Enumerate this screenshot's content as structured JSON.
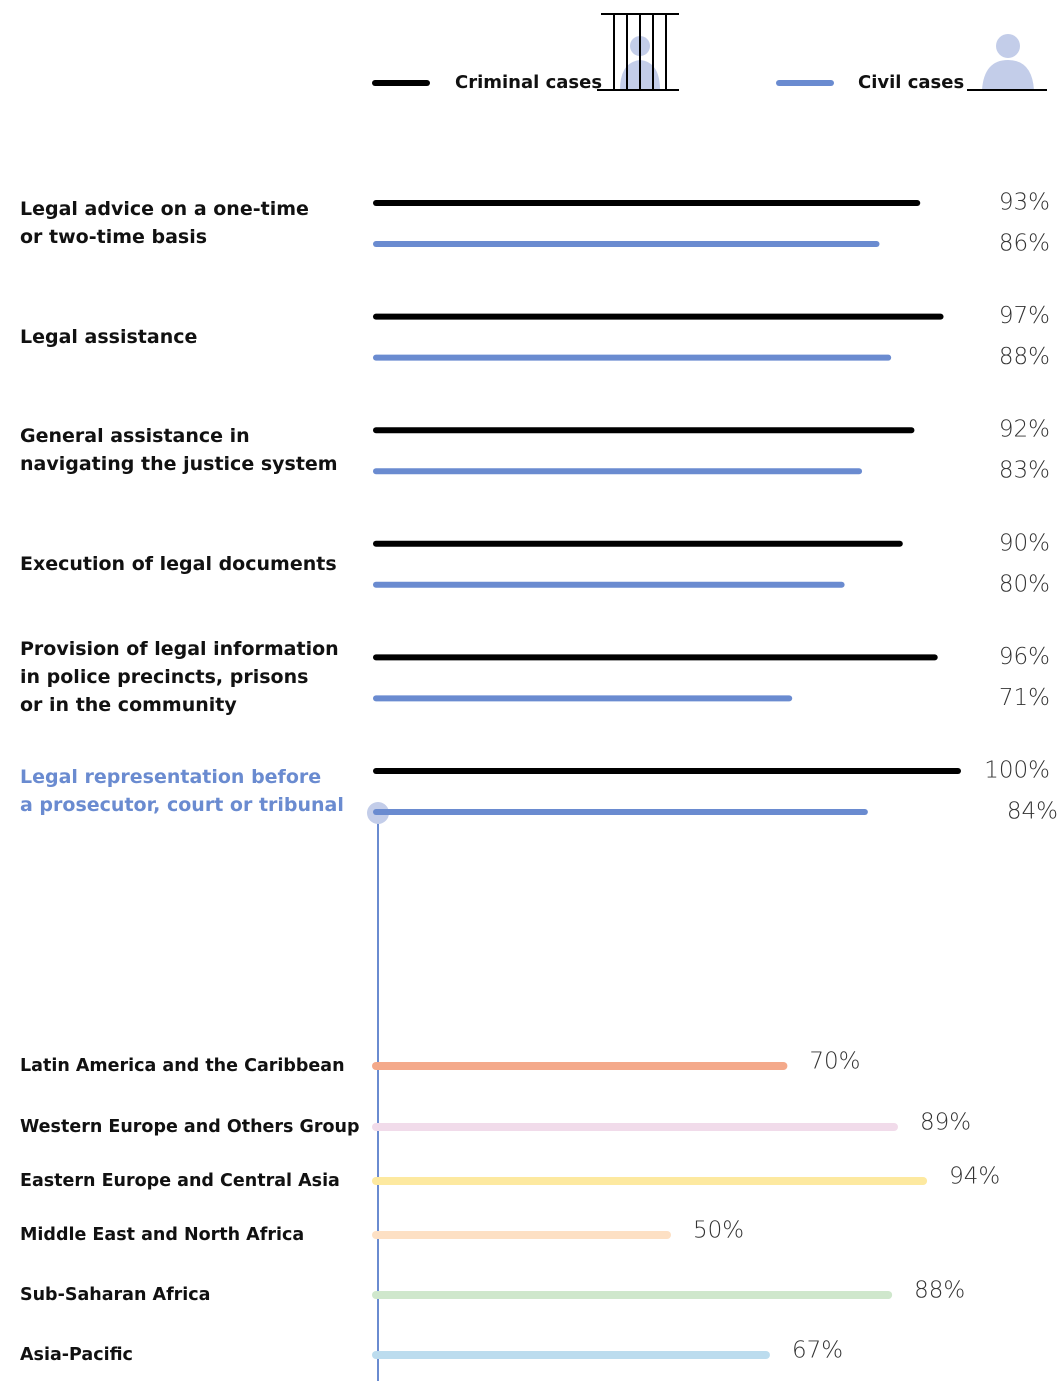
{
  "chart_data": [
    {
      "type": "bar",
      "orientation": "horizontal",
      "categories": [
        "Legal advice on a one-time\nor two-time basis",
        "Legal assistance",
        "General assistance in\nnavigating the justice system",
        "Execution of legal documents",
        "Provision of legal information\nin police precincts, prisons\nor in the community",
        "Legal representation before\na prosecutor, court or tribunal"
      ],
      "series": [
        {
          "name": "Criminal cases",
          "color": "#000000",
          "values": [
            93,
            97,
            92,
            90,
            96,
            100
          ],
          "value_labels": [
            "93%",
            "97%",
            "92%",
            "90%",
            "96%",
            "100%"
          ]
        },
        {
          "name": "Civil cases",
          "color": "#6a8bd0",
          "values": [
            86,
            88,
            83,
            80,
            71,
            84
          ],
          "value_labels": [
            "86%",
            "88%",
            "83%",
            "80%",
            "71%",
            "84%"
          ]
        }
      ],
      "xlim": [
        0,
        100
      ],
      "highlight": {
        "series": 1,
        "index": 5,
        "color": "#6a8bd0"
      }
    },
    {
      "type": "bar",
      "orientation": "horizontal",
      "categories": [
        "Latin America and the Caribbean",
        "Western Europe and Others Group",
        "Eastern Europe and Central Asia",
        "Middle East and North Africa",
        "Sub-Saharan Africa",
        "Asia-Pacific"
      ],
      "values": [
        70,
        89,
        94,
        50,
        88,
        67
      ],
      "value_labels": [
        "70%",
        "89%",
        "94%",
        "50%",
        "88%",
        "67%"
      ],
      "colors": [
        "#f4a98a",
        "#f1dbea",
        "#fde9a0",
        "#fde0c4",
        "#cfe7cc",
        "#bcdcee"
      ],
      "xlim": [
        0,
        100
      ]
    }
  ]
}
